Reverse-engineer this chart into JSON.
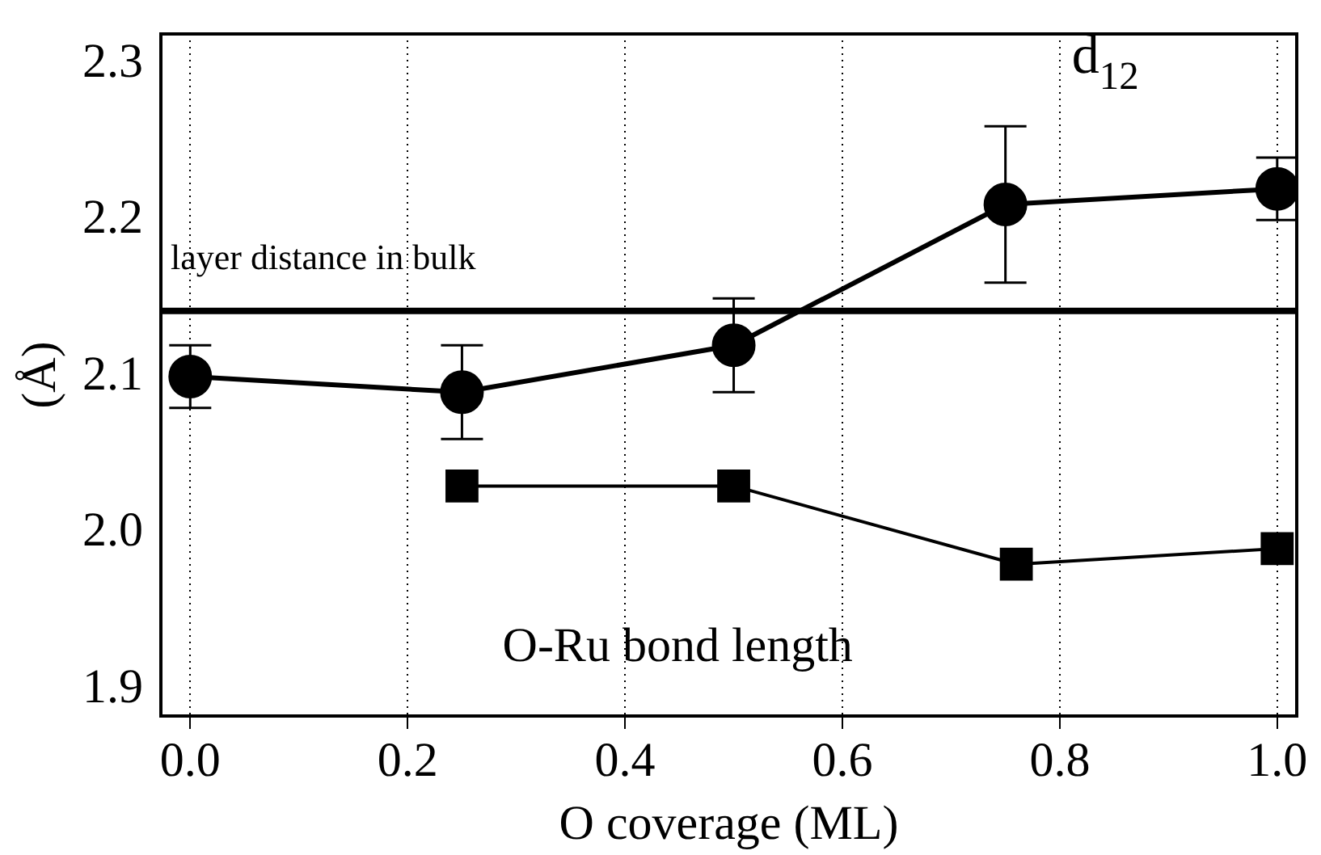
{
  "chart_data": {
    "type": "line",
    "xlabel": "O coverage (ML)",
    "ylabel": "(Å)",
    "x": [
      0,
      0.25,
      0.5,
      0.75,
      1.0
    ],
    "series": [
      {
        "name": "d$_{12}$",
        "color": "#000000",
        "marker": "circle",
        "values": [
          2.1,
          2.09,
          2.12,
          2.21,
          2.22
        ],
        "errors": [
          0.02,
          0.03,
          0.03,
          0.05,
          0.02
        ]
      },
      {
        "name": "O-Ru bond length",
        "color": "#000000",
        "marker": "square",
        "x": [
          0.25,
          0.5,
          0.76,
          1.0
        ],
        "values": [
          2.03,
          2.03,
          1.98,
          1.99
        ]
      }
    ],
    "ref_lines": [
      {
        "axis": "y",
        "value": 2.142,
        "label": "layer distance in bulk",
        "color": "#000000"
      }
    ],
    "xlim": [
      -0.027,
      1.018
    ],
    "ylim": [
      1.883,
      2.319
    ],
    "xticks": [
      {
        "value": 0,
        "label": "0.0"
      },
      0.2,
      0.4,
      0.6,
      0.8,
      {
        "value": 1,
        "label": "1.0"
      }
    ],
    "yticks": [
      1.9,
      {
        "value": 2,
        "label": "2.0"
      },
      2.1,
      2.2,
      2.3
    ],
    "grid": "x",
    "legend": false,
    "line_style": "solid"
  }
}
